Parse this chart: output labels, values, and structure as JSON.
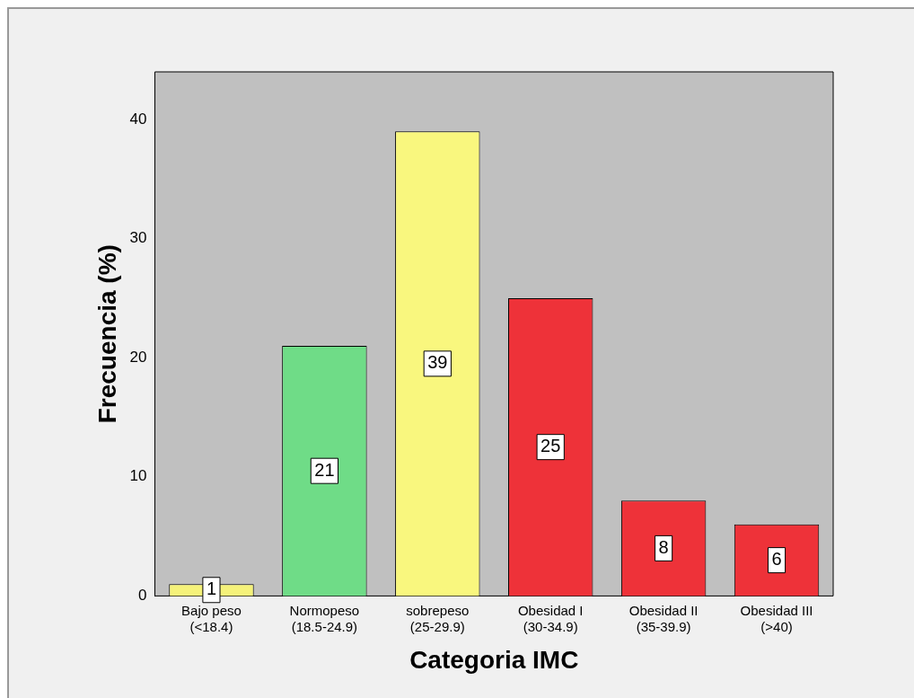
{
  "chart_data": {
    "type": "bar",
    "xlabel": "Categoria IMC",
    "ylabel": "Frecuencia (%)",
    "categories": [
      "Bajo peso\n(<18.4)",
      "Normopeso\n(18.5-24.9)",
      "sobrepeso\n(25-29.9)",
      "Obesidad I\n(30-34.9)",
      "Obesidad II\n(35-39.9)",
      "Obesidad III\n(>40)"
    ],
    "values": [
      1,
      21,
      39,
      25,
      8,
      6
    ],
    "colors": [
      "#f5f27a",
      "#6fdc87",
      "#f9f77e",
      "#ee3239",
      "#ee3239",
      "#ee3239"
    ],
    "ylim": [
      0,
      44
    ],
    "yticks": [
      0,
      10,
      20,
      30,
      40
    ],
    "grid": false,
    "legend": false,
    "data_labels": true
  }
}
